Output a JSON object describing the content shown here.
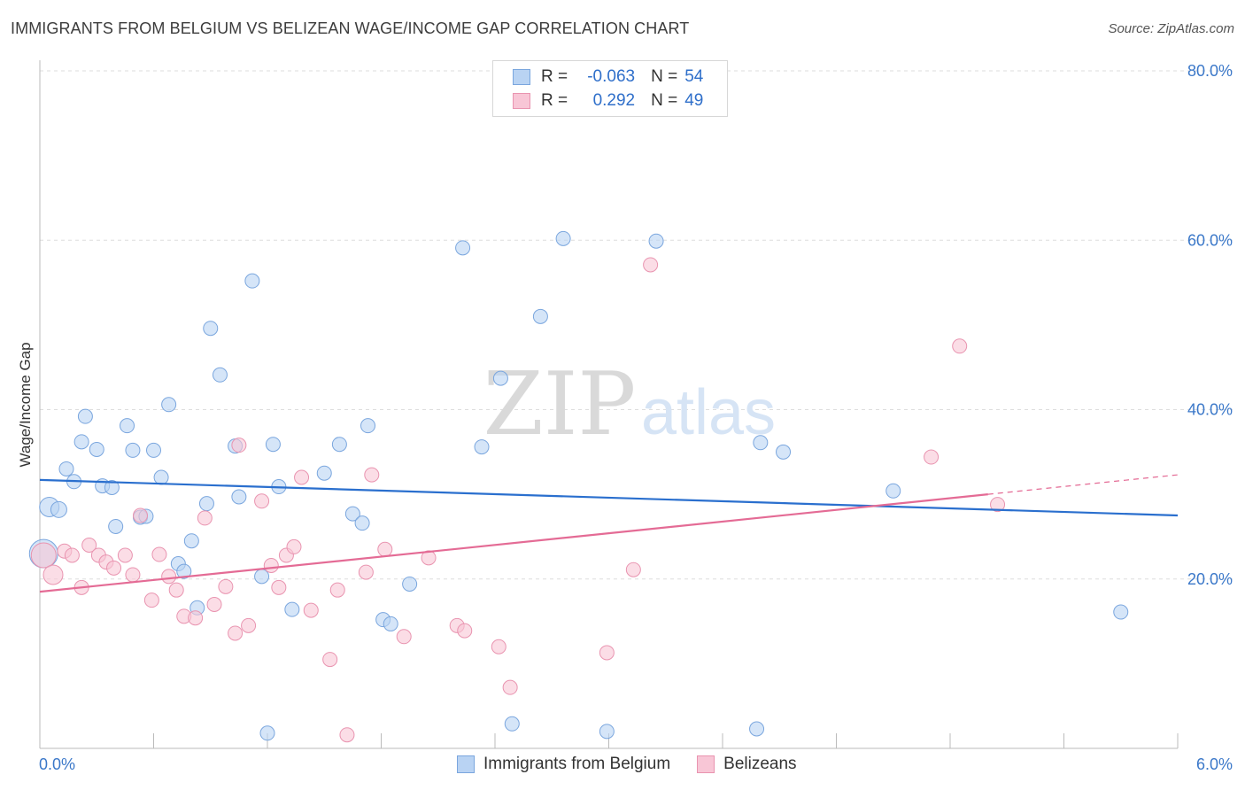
{
  "title": "IMMIGRANTS FROM BELGIUM VS BELIZEAN WAGE/INCOME GAP CORRELATION CHART",
  "source": "Source: ZipAtlas.com",
  "watermark": {
    "zip": "ZIP",
    "atlas": "atlas"
  },
  "legend": {
    "r_label": "R =",
    "n_label": "N =",
    "rows": [
      {
        "r": "-0.063",
        "n": "54"
      },
      {
        "r": "0.292",
        "n": "49"
      }
    ]
  },
  "bottom_legend": [
    "Immigrants from Belgium",
    "Belizeans"
  ],
  "colors": {
    "blue_fill": "#b9d3f3",
    "blue_stroke": "#7aa6de",
    "blue_line": "#2a6fce",
    "pink_fill": "#f8c6d6",
    "pink_stroke": "#e994b0",
    "pink_line": "#e46b95",
    "axis_text": "#3b78c9"
  },
  "chart_data": {
    "type": "scatter",
    "title": "IMMIGRANTS FROM BELGIUM VS BELIZEAN WAGE/INCOME GAP CORRELATION CHART",
    "xlabel": "",
    "ylabel": "Wage/Income Gap",
    "xlim": [
      0,
      6
    ],
    "ylim": [
      0,
      80
    ],
    "x_tick_labels": [
      "0.0%",
      "6.0%"
    ],
    "y_ticks": [
      20,
      40,
      60,
      80
    ],
    "y_tick_labels": [
      "20.0%",
      "40.0%",
      "60.0%",
      "80.0%"
    ],
    "grid": true,
    "legend_position": "top-center",
    "series": [
      {
        "name": "Immigrants from Belgium",
        "color": "#b9d3f3",
        "trend": {
          "x": [
            0,
            6
          ],
          "y": [
            31.7,
            27.5
          ]
        },
        "points": [
          [
            0.02,
            23.0,
            16
          ],
          [
            0.05,
            28.5,
            11
          ],
          [
            0.1,
            28.2,
            9
          ],
          [
            0.14,
            33.0,
            8
          ],
          [
            0.18,
            31.5,
            8
          ],
          [
            0.22,
            36.2,
            8
          ],
          [
            0.24,
            39.2,
            8
          ],
          [
            0.3,
            35.3,
            8
          ],
          [
            0.33,
            31.0,
            8
          ],
          [
            0.38,
            30.8,
            8
          ],
          [
            0.4,
            26.2,
            8
          ],
          [
            0.46,
            38.1,
            8
          ],
          [
            0.49,
            35.2,
            8
          ],
          [
            0.53,
            27.3,
            8
          ],
          [
            0.56,
            27.4,
            8
          ],
          [
            0.6,
            35.2,
            8
          ],
          [
            0.64,
            32.0,
            8
          ],
          [
            0.68,
            40.6,
            8
          ],
          [
            0.73,
            21.8,
            8
          ],
          [
            0.76,
            20.9,
            8
          ],
          [
            0.8,
            24.5,
            8
          ],
          [
            0.83,
            16.6,
            8
          ],
          [
            0.88,
            28.9,
            8
          ],
          [
            0.9,
            49.6,
            8
          ],
          [
            0.95,
            44.1,
            8
          ],
          [
            1.03,
            35.7,
            8
          ],
          [
            1.05,
            29.7,
            8
          ],
          [
            1.12,
            55.2,
            8
          ],
          [
            1.17,
            20.3,
            8
          ],
          [
            1.2,
            1.8,
            8
          ],
          [
            1.23,
            35.9,
            8
          ],
          [
            1.26,
            30.9,
            8
          ],
          [
            1.33,
            16.4,
            8
          ],
          [
            1.5,
            32.5,
            8
          ],
          [
            1.58,
            35.9,
            8
          ],
          [
            1.65,
            27.7,
            8
          ],
          [
            1.7,
            26.6,
            8
          ],
          [
            1.73,
            38.1,
            8
          ],
          [
            1.81,
            15.2,
            8
          ],
          [
            1.85,
            14.7,
            8
          ],
          [
            1.95,
            19.4,
            8
          ],
          [
            2.23,
            59.1,
            8
          ],
          [
            2.33,
            35.6,
            8
          ],
          [
            2.43,
            43.7,
            8
          ],
          [
            2.49,
            2.9,
            8
          ],
          [
            2.64,
            51.0,
            8
          ],
          [
            2.76,
            60.2,
            8
          ],
          [
            2.99,
            2.0,
            8
          ],
          [
            3.25,
            59.9,
            8
          ],
          [
            3.78,
            2.3,
            8
          ],
          [
            3.8,
            36.1,
            8
          ],
          [
            3.92,
            35.0,
            8
          ],
          [
            4.5,
            30.4,
            8
          ],
          [
            5.7,
            16.1,
            8
          ]
        ]
      },
      {
        "name": "Belizeans",
        "color": "#f8c6d6",
        "trend": {
          "x": [
            0,
            5.0
          ],
          "y": [
            18.5,
            30.0
          ]
        },
        "trend_extension": {
          "x": [
            5.0,
            6.0
          ],
          "y": [
            30.0,
            32.3
          ]
        },
        "points": [
          [
            0.02,
            22.8,
            14
          ],
          [
            0.07,
            20.5,
            11
          ],
          [
            0.13,
            23.3,
            8
          ],
          [
            0.17,
            22.8,
            8
          ],
          [
            0.22,
            19.0,
            8
          ],
          [
            0.26,
            24.0,
            8
          ],
          [
            0.31,
            22.8,
            8
          ],
          [
            0.35,
            22.0,
            8
          ],
          [
            0.39,
            21.3,
            8
          ],
          [
            0.45,
            22.8,
            8
          ],
          [
            0.49,
            20.5,
            8
          ],
          [
            0.53,
            27.5,
            8
          ],
          [
            0.59,
            17.5,
            8
          ],
          [
            0.63,
            22.9,
            8
          ],
          [
            0.68,
            20.3,
            8
          ],
          [
            0.72,
            18.7,
            8
          ],
          [
            0.76,
            15.6,
            8
          ],
          [
            0.82,
            15.4,
            8
          ],
          [
            0.87,
            27.2,
            8
          ],
          [
            0.92,
            17.0,
            8
          ],
          [
            0.98,
            19.1,
            8
          ],
          [
            1.03,
            13.6,
            8
          ],
          [
            1.05,
            35.8,
            8
          ],
          [
            1.1,
            14.5,
            8
          ],
          [
            1.17,
            29.2,
            8
          ],
          [
            1.22,
            21.6,
            8
          ],
          [
            1.26,
            19.0,
            8
          ],
          [
            1.3,
            22.8,
            8
          ],
          [
            1.34,
            23.8,
            8
          ],
          [
            1.38,
            32.0,
            8
          ],
          [
            1.43,
            16.3,
            8
          ],
          [
            1.53,
            10.5,
            8
          ],
          [
            1.57,
            18.7,
            8
          ],
          [
            1.62,
            1.6,
            8
          ],
          [
            1.72,
            20.8,
            8
          ],
          [
            1.75,
            32.3,
            8
          ],
          [
            1.82,
            23.5,
            8
          ],
          [
            1.92,
            13.2,
            8
          ],
          [
            2.05,
            22.5,
            8
          ],
          [
            2.2,
            14.5,
            8
          ],
          [
            2.24,
            13.9,
            8
          ],
          [
            2.42,
            12.0,
            8
          ],
          [
            2.48,
            7.2,
            8
          ],
          [
            2.99,
            11.3,
            8
          ],
          [
            3.13,
            21.1,
            8
          ],
          [
            3.22,
            57.1,
            8
          ],
          [
            4.7,
            34.4,
            8
          ],
          [
            4.85,
            47.5,
            8
          ],
          [
            5.05,
            28.8,
            8
          ]
        ]
      }
    ]
  }
}
